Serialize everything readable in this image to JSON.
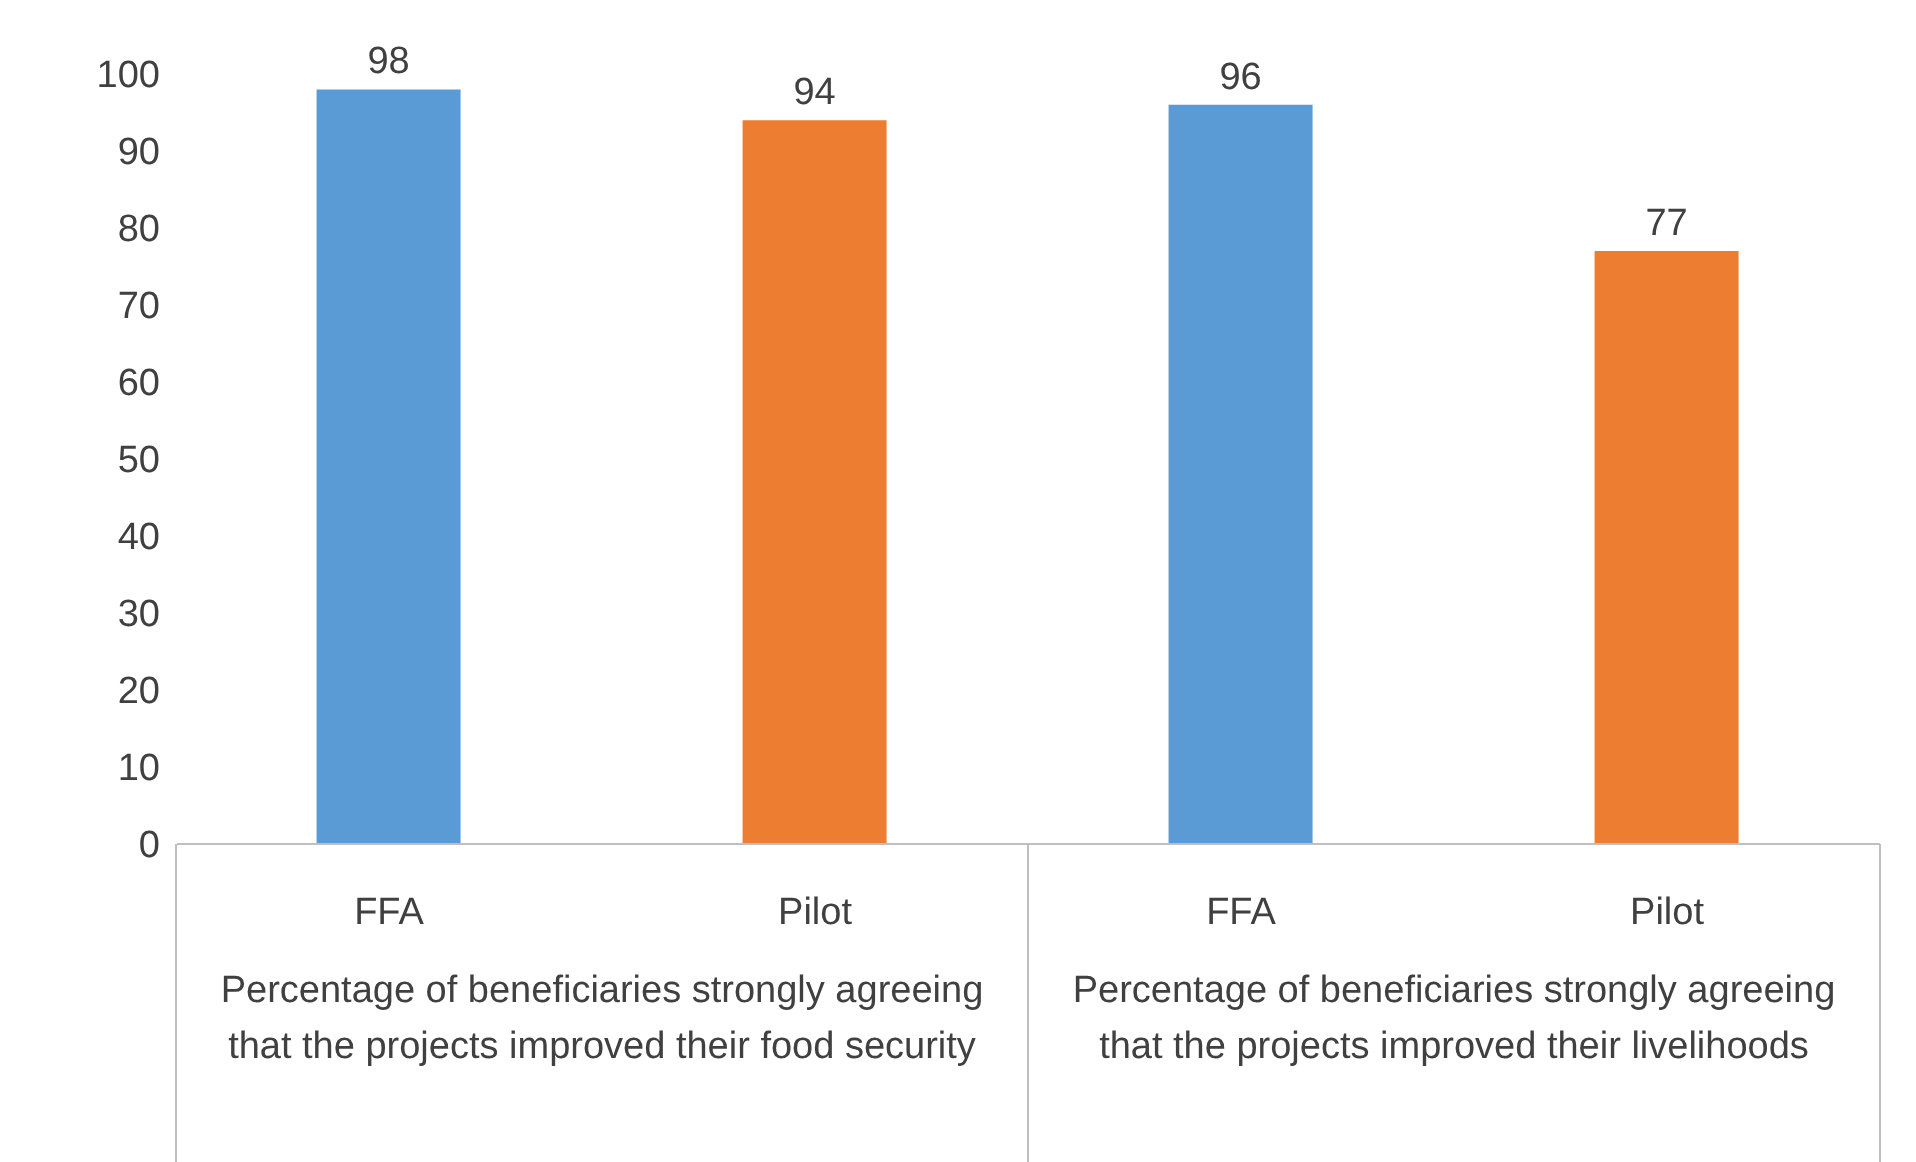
{
  "chart_data": {
    "type": "bar",
    "categories": [
      "FFA",
      "Pilot",
      "FFA",
      "Pilot"
    ],
    "values": [
      98,
      94,
      96,
      77
    ],
    "colors": [
      "#5b9bd5",
      "#ed7d31",
      "#5b9bd5",
      "#ed7d31"
    ],
    "ylim": [
      0,
      100
    ],
    "yticks": [
      0,
      10,
      20,
      30,
      40,
      50,
      60,
      70,
      80,
      90,
      100
    ],
    "data_labels": true,
    "annotations": [
      "Percentage of beneficiaries strongly agreeing that the projects improved their food security",
      "Percentage of beneficiaries strongly agreeing that the projects improved their livelihoods"
    ]
  }
}
